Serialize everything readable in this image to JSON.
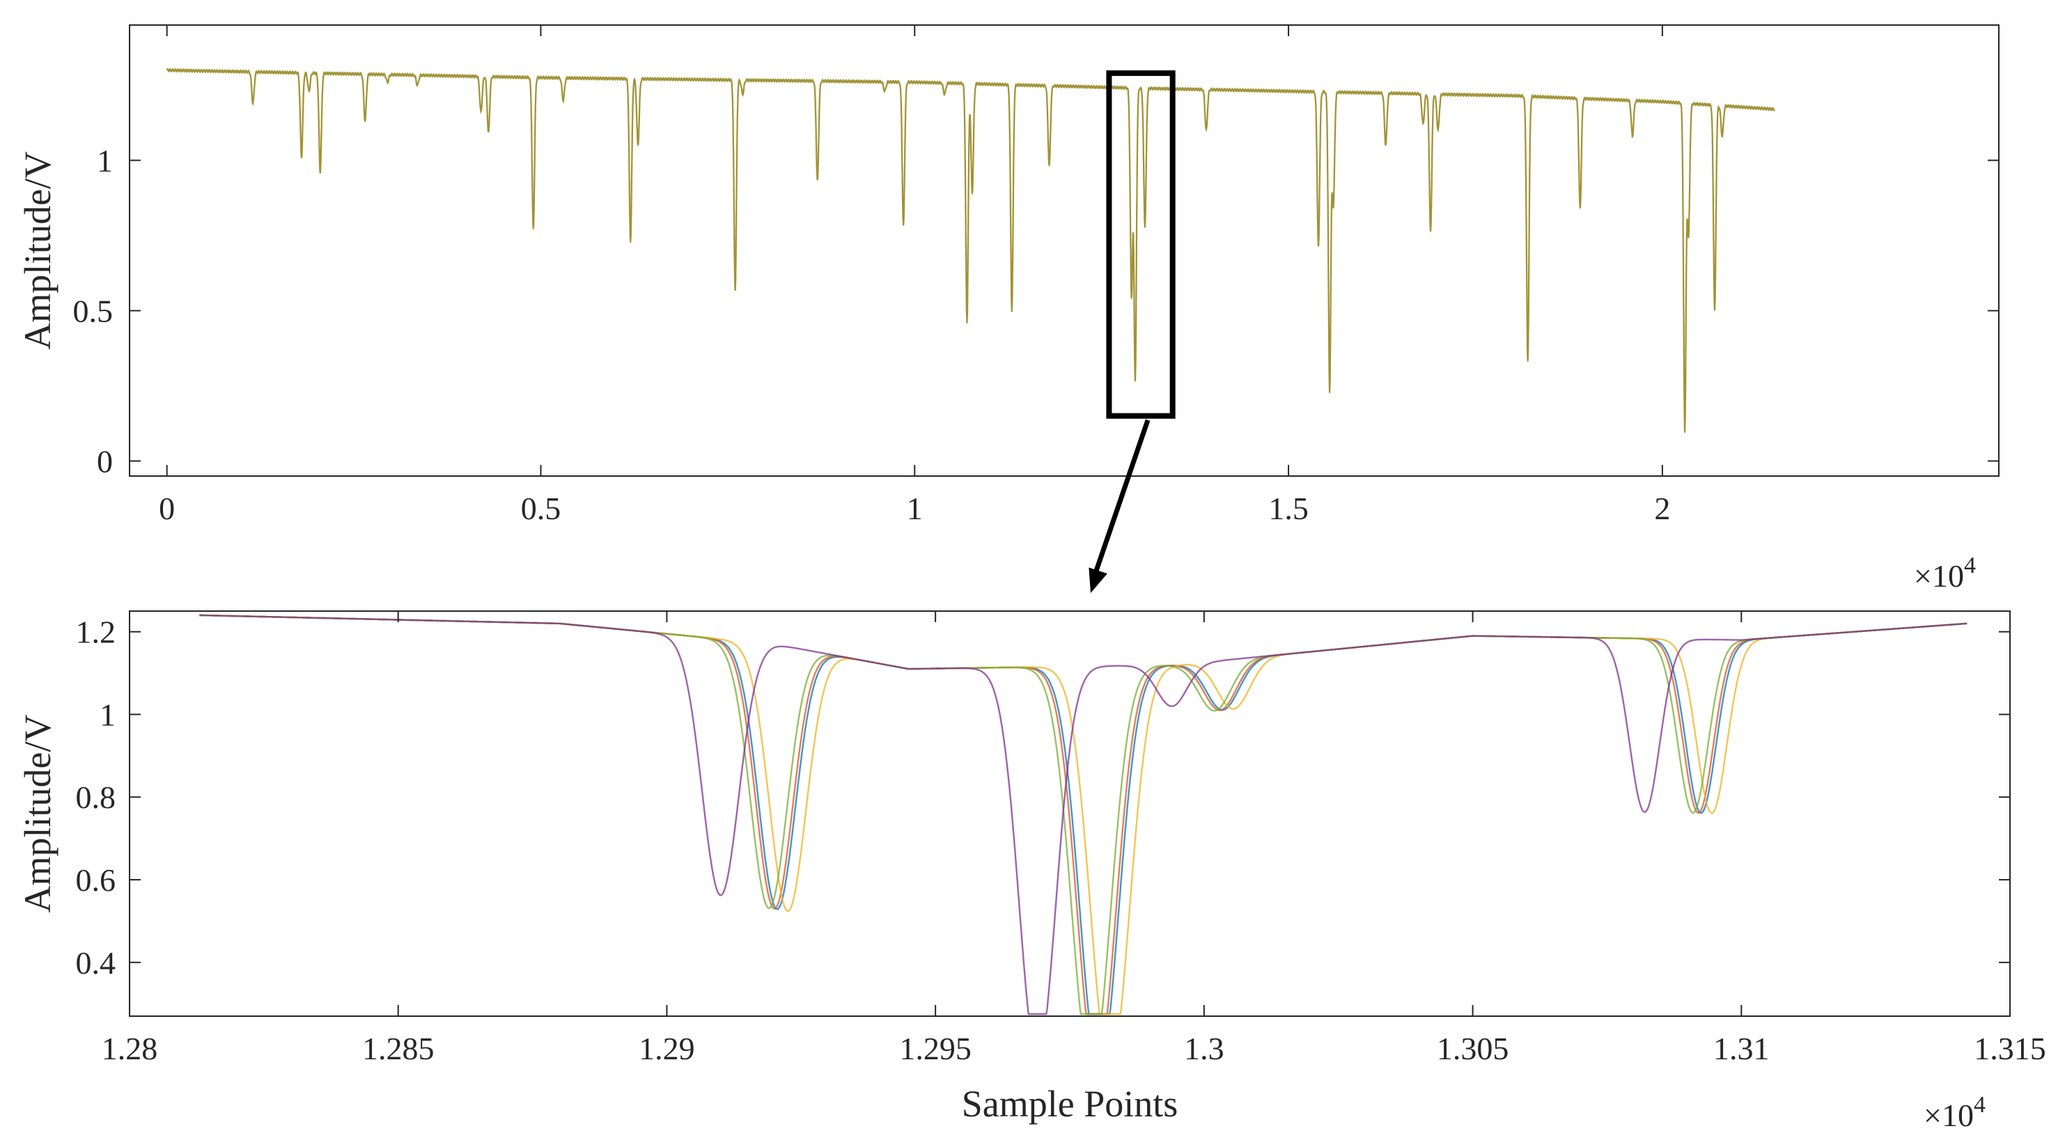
{
  "colors": {
    "axis": "#262626",
    "series_1": "#0072BD",
    "series_2": "#D95319",
    "series_3": "#EDB120",
    "series_4": "#7E2F8E",
    "series_5": "#77AC30",
    "annotation": "#000000"
  },
  "chart_data": [
    {
      "type": "line",
      "title": "",
      "xlabel": "",
      "ylabel": "Amplitude/V",
      "x_multiplier_label": "×10",
      "x_multiplier_exponent": "4",
      "xlim": [
        -0.05,
        2.45
      ],
      "ylim": [
        -0.05,
        1.45
      ],
      "xticks": [
        0,
        0.5,
        1,
        1.5,
        2
      ],
      "xtick_labels": [
        "0",
        "0.5",
        "1",
        "1.5",
        "2"
      ],
      "yticks": [
        0,
        0.5,
        1
      ],
      "ytick_labels": [
        "0",
        "0.5",
        "1"
      ],
      "grid": false,
      "legend": "none",
      "baseline": {
        "x": [
          0,
          0.5,
          1,
          1.3,
          1.6,
          1.8,
          2.0,
          2.15
        ],
        "y": [
          1.3,
          1.275,
          1.26,
          1.24,
          1.225,
          1.215,
          1.195,
          1.17
        ]
      },
      "dips": [
        {
          "x": 0.115,
          "y": 1.19
        },
        {
          "x": 0.18,
          "y": 1.01
        },
        {
          "x": 0.19,
          "y": 1.23
        },
        {
          "x": 0.205,
          "y": 0.96
        },
        {
          "x": 0.265,
          "y": 1.13
        },
        {
          "x": 0.295,
          "y": 1.26
        },
        {
          "x": 0.335,
          "y": 1.25
        },
        {
          "x": 0.42,
          "y": 1.16
        },
        {
          "x": 0.43,
          "y": 1.09
        },
        {
          "x": 0.49,
          "y": 0.77
        },
        {
          "x": 0.53,
          "y": 1.2
        },
        {
          "x": 0.62,
          "y": 0.73
        },
        {
          "x": 0.63,
          "y": 1.05
        },
        {
          "x": 0.76,
          "y": 0.57
        },
        {
          "x": 0.77,
          "y": 1.22
        },
        {
          "x": 0.87,
          "y": 0.93
        },
        {
          "x": 0.96,
          "y": 1.23
        },
        {
          "x": 0.985,
          "y": 0.78
        },
        {
          "x": 1.04,
          "y": 1.22
        },
        {
          "x": 1.07,
          "y": 0.46
        },
        {
          "x": 1.077,
          "y": 0.89
        },
        {
          "x": 1.13,
          "y": 0.5
        },
        {
          "x": 1.18,
          "y": 0.98
        },
        {
          "x": 1.29,
          "y": 0.55
        },
        {
          "x": 1.295,
          "y": 0.27
        },
        {
          "x": 1.308,
          "y": 0.78
        },
        {
          "x": 1.39,
          "y": 1.1
        },
        {
          "x": 1.54,
          "y": 0.71
        },
        {
          "x": 1.555,
          "y": 0.23
        },
        {
          "x": 1.56,
          "y": 0.85
        },
        {
          "x": 1.63,
          "y": 1.05
        },
        {
          "x": 1.68,
          "y": 1.12
        },
        {
          "x": 1.69,
          "y": 0.76
        },
        {
          "x": 1.7,
          "y": 1.1
        },
        {
          "x": 1.82,
          "y": 0.33
        },
        {
          "x": 1.89,
          "y": 0.84
        },
        {
          "x": 1.96,
          "y": 1.08
        },
        {
          "x": 2.03,
          "y": 0.1
        },
        {
          "x": 2.035,
          "y": 0.75
        },
        {
          "x": 2.07,
          "y": 0.5
        },
        {
          "x": 2.08,
          "y": 1.08
        }
      ],
      "series": [
        {
          "color": "#77AC30",
          "x": [
            0,
            2.15
          ]
        },
        {
          "color": "#D95319",
          "x": [
            0,
            2.15
          ]
        }
      ],
      "zoom_box": {
        "x": [
          1.26,
          1.345
        ],
        "y": [
          0.15,
          1.29
        ]
      }
    },
    {
      "type": "line",
      "title": "",
      "xlabel": "Sample Points",
      "ylabel": "Amplitude/V",
      "x_multiplier_label": "×10",
      "x_multiplier_exponent": "4",
      "xlim": [
        1.28,
        1.315
      ],
      "ylim": [
        0.27,
        1.25
      ],
      "xticks": [
        1.28,
        1.285,
        1.29,
        1.295,
        1.3,
        1.305,
        1.31,
        1.315
      ],
      "xtick_labels": [
        "1.28",
        "1.285",
        "1.29",
        "1.295",
        "1.3",
        "1.305",
        "1.31",
        "1.315"
      ],
      "yticks": [
        0.4,
        0.6,
        0.8,
        1,
        1.2
      ],
      "ytick_labels": [
        "0.4",
        "0.6",
        "0.8",
        "1",
        "1.2"
      ],
      "grid": false,
      "legend": "none",
      "x_range": [
        1.2813,
        1.3142
      ],
      "series": [
        {
          "color": "#0072BD",
          "shift": 5e-05,
          "dips": [
            {
              "x": 1.292,
              "depth": 0.64,
              "width": 0.00034
            },
            {
              "x": 1.298,
              "depth": 0.98,
              "width": 0.00036
            },
            {
              "x": 1.3003,
              "depth": 0.12,
              "width": 0.0003
            },
            {
              "x": 1.3092,
              "depth": 0.42,
              "width": 0.00028
            }
          ]
        },
        {
          "color": "#D95319",
          "shift": 0.0,
          "dips": [
            {
              "x": 1.292,
              "depth": 0.64,
              "width": 0.00034
            },
            {
              "x": 1.298,
              "depth": 0.98,
              "width": 0.00036
            },
            {
              "x": 1.3003,
              "depth": 0.12,
              "width": 0.0003
            },
            {
              "x": 1.3092,
              "depth": 0.42,
              "width": 0.00028
            }
          ]
        },
        {
          "color": "#EDB120",
          "shift": 0.00025,
          "dips": [
            {
              "x": 1.292,
              "depth": 0.64,
              "width": 0.00034
            },
            {
              "x": 1.298,
              "depth": 0.98,
              "width": 0.00036
            },
            {
              "x": 1.3003,
              "depth": 0.12,
              "width": 0.0003
            },
            {
              "x": 1.3092,
              "depth": 0.42,
              "width": 0.00028
            }
          ]
        },
        {
          "color": "#77AC30",
          "shift": -0.0001,
          "dips": [
            {
              "x": 1.292,
              "depth": 0.64,
              "width": 0.00034
            },
            {
              "x": 1.298,
              "depth": 0.98,
              "width": 0.00036
            },
            {
              "x": 1.3003,
              "depth": 0.12,
              "width": 0.0003
            },
            {
              "x": 1.3092,
              "depth": 0.42,
              "width": 0.00028
            }
          ]
        },
        {
          "color": "#7E2F8E",
          "shift": 0.0,
          "dips": [
            {
              "x": 1.291,
              "depth": 0.62,
              "width": 0.00034
            },
            {
              "x": 1.2969,
              "depth": 0.95,
              "width": 0.00034
            },
            {
              "x": 1.2994,
              "depth": 0.1,
              "width": 0.00028
            },
            {
              "x": 1.3082,
              "depth": 0.42,
              "width": 0.00028
            }
          ]
        }
      ],
      "baseline": {
        "x": [
          1.2813,
          1.288,
          1.292,
          1.2945,
          1.2995,
          1.305,
          1.31,
          1.3142
        ],
        "y": [
          1.24,
          1.22,
          1.17,
          1.11,
          1.12,
          1.19,
          1.18,
          1.22
        ]
      }
    }
  ]
}
